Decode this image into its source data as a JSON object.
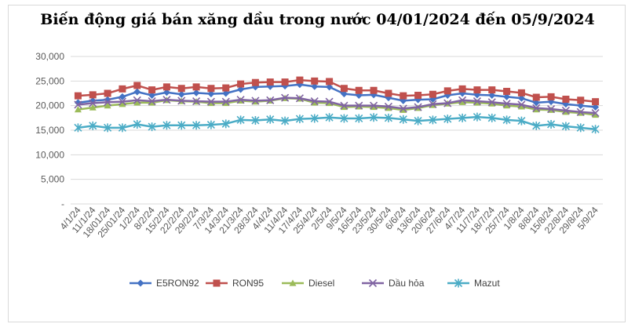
{
  "chart_data": {
    "type": "line",
    "title": "Biến động giá bán xăng dầu trong nước 04/01/2024 đến 05/9/2024",
    "xlabel": "",
    "ylabel": "",
    "ylim": [
      0,
      30000
    ],
    "y_ticks": [
      "-",
      "5,000",
      "10,000",
      "15,000",
      "20,000",
      "25,000",
      "30,000"
    ],
    "y_tick_values": [
      0,
      5000,
      10000,
      15000,
      20000,
      25000,
      30000
    ],
    "grid": true,
    "legend_position": "bottom",
    "x_tick_labels": [
      "4/1/24",
      "11/1/24",
      "18/01/24",
      "25/01/24",
      "1/2/24",
      "8/2/24",
      "15/2/24",
      "22/2/24",
      "29/2/24",
      "7/3/24",
      "14/3/24",
      "21/3/24",
      "28/3/24",
      "4/4/24",
      "11/4/24",
      "17/4/24",
      "25/4/24",
      "2/5/24",
      "9/5/24",
      "16/5/24",
      "23/5/24",
      "30/5/24",
      "6/6/24",
      "13/6/24",
      "20/6/24",
      "27/6/24",
      "4/7/24",
      "11/7/24",
      "18/7/24",
      "25/7/24",
      "1/8/24",
      "8/8/24",
      "15/8/24",
      "22/8/24",
      "29/8/24",
      "5/9/24"
    ],
    "series": [
      {
        "name": "E5RON92",
        "color": "#4472C4",
        "marker": "diamond",
        "values": [
          20600,
          21000,
          21200,
          21800,
          22800,
          22100,
          22700,
          22300,
          22600,
          22400,
          22500,
          23300,
          23800,
          23900,
          24000,
          24300,
          23900,
          23800,
          22400,
          22100,
          22200,
          21600,
          21000,
          21200,
          21300,
          22100,
          22500,
          22200,
          22100,
          21800,
          21500,
          20600,
          20800,
          20300,
          20000,
          19700
        ]
      },
      {
        "name": "RON95",
        "color": "#C0504D",
        "marker": "square",
        "values": [
          22000,
          22200,
          22500,
          23400,
          24100,
          23200,
          23800,
          23500,
          23800,
          23500,
          23600,
          24400,
          24700,
          24800,
          24800,
          25200,
          25000,
          24900,
          23500,
          23100,
          23100,
          22500,
          22000,
          22100,
          22300,
          23000,
          23400,
          23200,
          23200,
          22900,
          22600,
          21700,
          21800,
          21300,
          21100,
          20800
        ]
      },
      {
        "name": "Diesel",
        "color": "#9BBB59",
        "marker": "triangle",
        "values": [
          19200,
          19600,
          20000,
          20300,
          20600,
          20600,
          21100,
          20900,
          20800,
          20500,
          20500,
          21000,
          20800,
          21000,
          21500,
          21400,
          20600,
          20500,
          19700,
          19800,
          19700,
          19500,
          19100,
          19500,
          20100,
          20400,
          20700,
          20600,
          20400,
          20000,
          19800,
          19200,
          19100,
          18700,
          18500,
          18100
        ]
      },
      {
        "name": "Dầu hỏa",
        "color": "#8064A2",
        "marker": "x",
        "values": [
          20200,
          20500,
          20700,
          20800,
          21100,
          20900,
          21200,
          21000,
          20900,
          20800,
          20800,
          21200,
          21000,
          21100,
          21600,
          21500,
          20900,
          20800,
          20000,
          20000,
          20000,
          19800,
          19400,
          19700,
          20300,
          20500,
          21100,
          20900,
          20700,
          20400,
          20200,
          19500,
          19300,
          19000,
          18700,
          18500
        ]
      },
      {
        "name": "Mazut",
        "color": "#4BACC6",
        "marker": "asterisk",
        "values": [
          15500,
          15900,
          15500,
          15500,
          16200,
          15700,
          16000,
          16000,
          16000,
          16100,
          16300,
          17100,
          17000,
          17200,
          16900,
          17300,
          17400,
          17600,
          17400,
          17400,
          17600,
          17500,
          17200,
          16900,
          17100,
          17300,
          17500,
          17700,
          17500,
          17100,
          16900,
          15900,
          16200,
          15800,
          15500,
          15200
        ]
      }
    ]
  }
}
